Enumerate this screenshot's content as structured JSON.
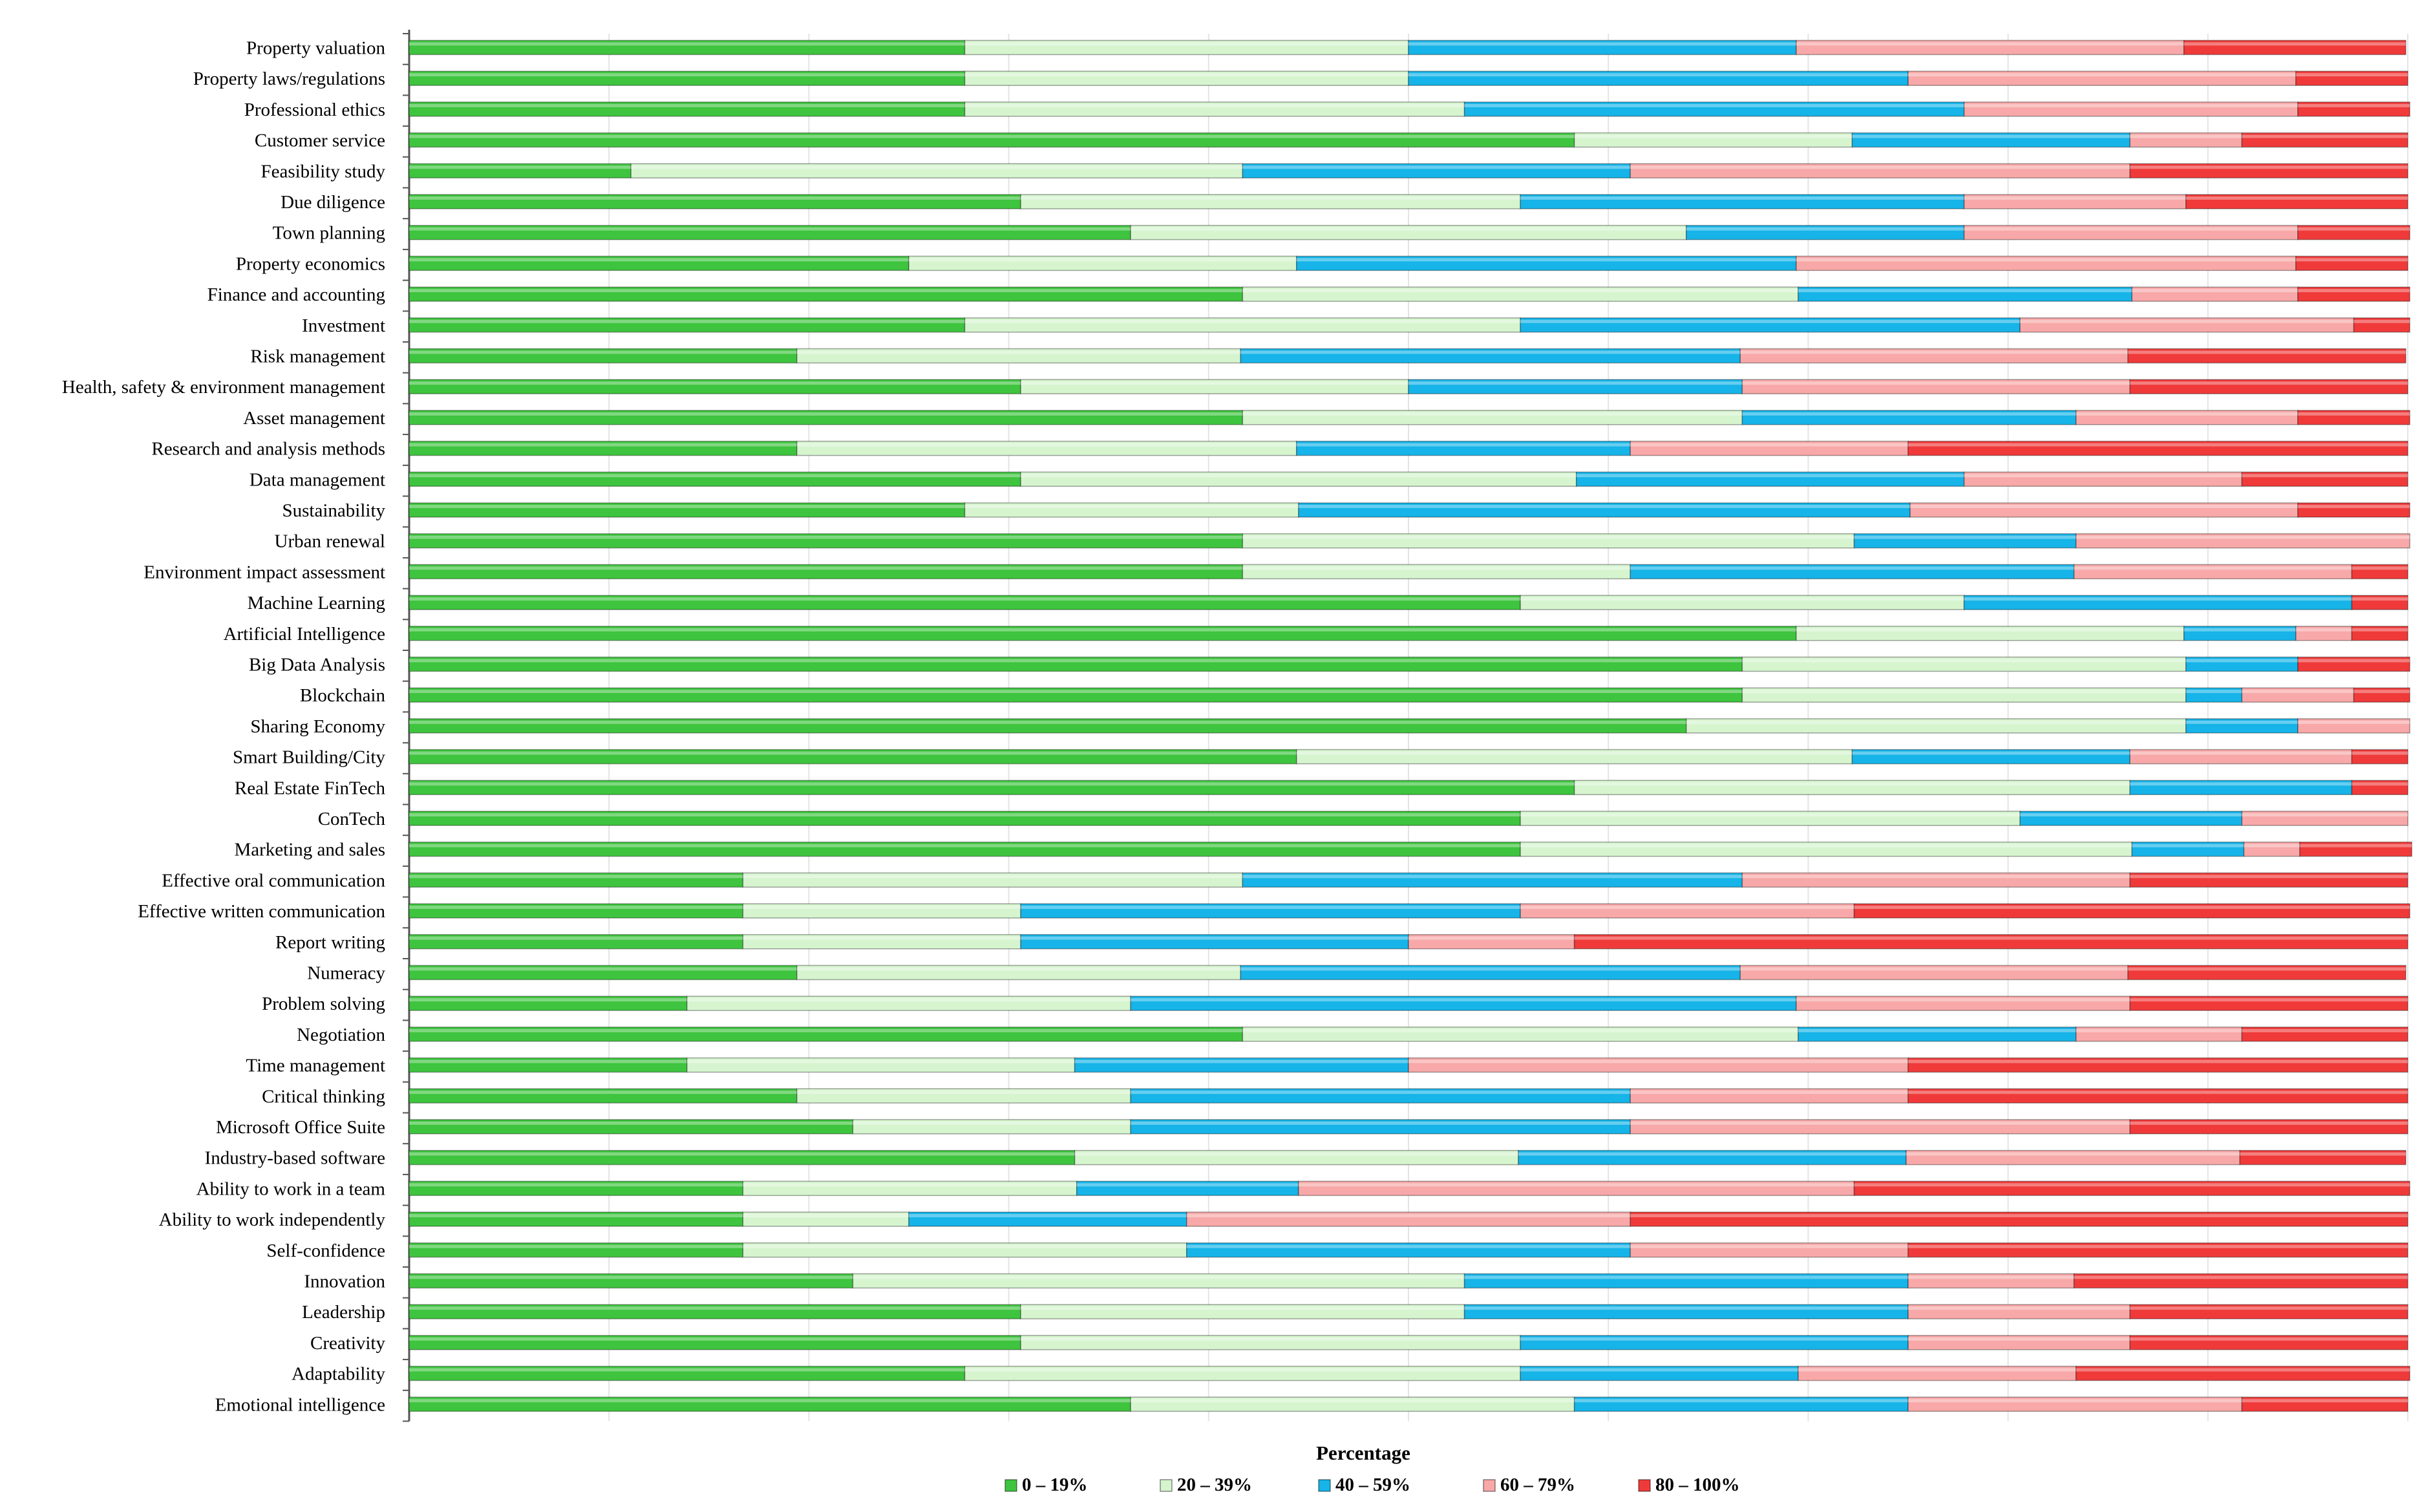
{
  "chart_data": {
    "type": "bar",
    "orientation": "horizontal",
    "stacked": true,
    "percent_stacked": true,
    "title": "",
    "xlabel": "Percentage",
    "ylabel": "",
    "xlim": [
      0,
      100
    ],
    "legend_position": "bottom",
    "categories": [
      "Property valuation",
      "Property laws/regulations",
      "Professional ethics",
      "Customer service",
      "Feasibility study",
      "Due diligence",
      "Town planning",
      "Property economics",
      "Finance and accounting",
      "Investment",
      "Risk management",
      "Health, safety & environment management",
      "Asset management",
      "Research and analysis methods",
      "Data management",
      "Sustainability",
      "Urban renewal",
      "Environment impact assessment",
      "Machine Learning",
      "Artificial Intelligence",
      "Big Data Analysis",
      "Blockchain",
      "Sharing Economy",
      "Smart Building/City",
      "Real Estate FinTech",
      "ConTech",
      "Marketing and sales",
      "Effective oral communication",
      "Effective written communication",
      "Report writing",
      "Numeracy",
      "Problem solving",
      "Negotiation",
      "Time management",
      "Critical thinking",
      "Microsoft Office Suite",
      "Industry-based software",
      "Ability to work in a team",
      "Ability to work independently",
      "Self-confidence",
      "Innovation",
      "Leadership",
      "Creativity",
      "Adaptability",
      "Emotional intelligence"
    ],
    "series": [
      {
        "name": "0 – 19%",
        "color": "#3ec43e",
        "values": [
          27.8,
          27.8,
          27.8,
          58.3,
          11.1,
          30.6,
          36.1,
          25.0,
          41.7,
          27.8,
          19.4,
          30.6,
          41.7,
          19.4,
          30.6,
          27.8,
          41.7,
          41.7,
          55.6,
          69.4,
          66.7,
          66.7,
          63.9,
          44.4,
          58.3,
          55.6,
          55.6,
          16.7,
          16.7,
          16.7,
          19.4,
          13.9,
          41.7,
          13.9,
          19.4,
          22.2,
          33.3,
          16.7,
          16.7,
          16.7,
          22.2,
          30.6,
          30.6,
          27.8,
          36.1
        ]
      },
      {
        "name": "20 – 39%",
        "color": "#d6f5cf",
        "values": [
          22.2,
          22.2,
          25.0,
          13.9,
          30.6,
          25.0,
          27.8,
          19.4,
          27.8,
          27.8,
          22.2,
          19.4,
          25.0,
          25.0,
          27.8,
          16.7,
          30.6,
          19.4,
          22.2,
          19.4,
          22.2,
          22.2,
          25.0,
          27.8,
          27.8,
          25.0,
          30.6,
          25.0,
          13.9,
          13.9,
          22.2,
          22.2,
          27.8,
          19.4,
          16.7,
          13.9,
          22.2,
          16.7,
          8.3,
          22.2,
          30.6,
          22.2,
          25.0,
          27.8,
          22.2
        ]
      },
      {
        "name": "40 – 59%",
        "color": "#16b4e8",
        "values": [
          19.4,
          25.0,
          25.0,
          13.9,
          19.4,
          22.2,
          13.9,
          25.0,
          16.7,
          25.0,
          25.0,
          16.7,
          16.7,
          16.7,
          19.4,
          30.6,
          11.1,
          22.2,
          19.4,
          5.6,
          5.6,
          2.8,
          5.6,
          13.9,
          11.1,
          11.1,
          5.6,
          25.0,
          25.0,
          19.4,
          25.0,
          33.3,
          13.9,
          16.7,
          25.0,
          25.0,
          19.4,
          11.1,
          13.9,
          22.2,
          22.2,
          22.2,
          19.4,
          13.9,
          16.7
        ]
      },
      {
        "name": "60 – 79%",
        "color": "#f8a8a8",
        "values": [
          19.4,
          19.4,
          16.7,
          5.6,
          25.0,
          11.1,
          16.7,
          25.0,
          8.3,
          16.7,
          19.4,
          19.4,
          11.1,
          13.9,
          13.9,
          19.4,
          16.7,
          13.9,
          0,
          2.8,
          0,
          5.6,
          5.6,
          11.1,
          0,
          8.3,
          2.8,
          19.4,
          16.7,
          8.3,
          19.4,
          16.7,
          8.3,
          25.0,
          13.9,
          25.0,
          16.7,
          27.8,
          22.2,
          13.9,
          8.3,
          11.1,
          11.1,
          13.9,
          16.7
        ]
      },
      {
        "name": "80 – 100%",
        "color": "#f03a3a",
        "values": [
          11.1,
          5.6,
          5.6,
          8.3,
          13.9,
          11.1,
          5.6,
          5.6,
          5.6,
          2.8,
          13.9,
          13.9,
          5.6,
          25.0,
          8.3,
          5.6,
          0,
          2.8,
          2.8,
          2.8,
          5.6,
          2.8,
          0,
          2.8,
          2.8,
          0,
          5.6,
          13.9,
          27.8,
          41.7,
          13.9,
          13.9,
          8.3,
          25.0,
          25.0,
          13.9,
          8.3,
          27.8,
          38.9,
          25.0,
          16.7,
          13.9,
          13.9,
          16.7,
          8.3
        ]
      }
    ]
  }
}
